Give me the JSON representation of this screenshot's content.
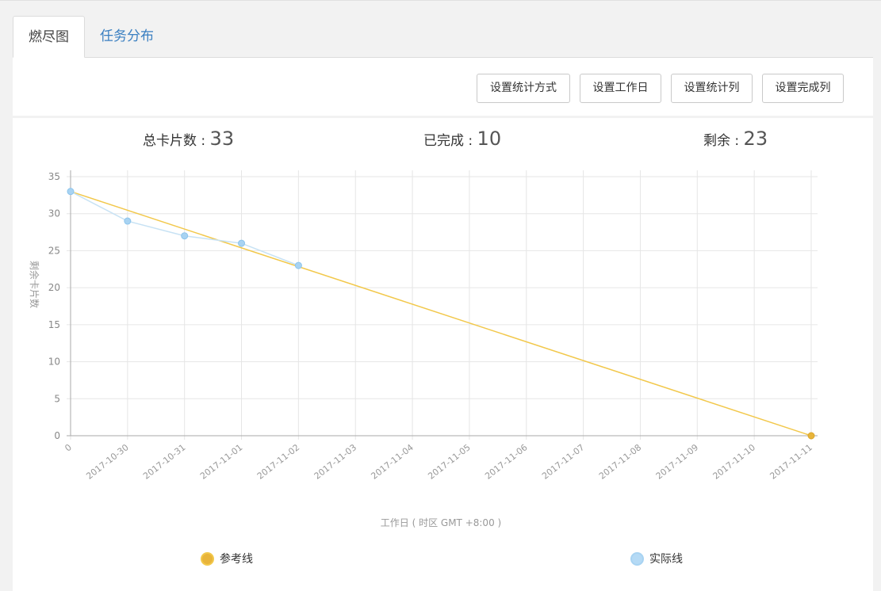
{
  "tabs": [
    {
      "label": "燃尽图",
      "active": true
    },
    {
      "label": "任务分布",
      "active": false
    }
  ],
  "toolbar": {
    "buttons": [
      "设置统计方式",
      "设置工作日",
      "设置统计列",
      "设置完成列"
    ]
  },
  "stats": {
    "total_label": "总卡片数 : ",
    "total_value": "33",
    "done_label": "已完成 : ",
    "done_value": "10",
    "remaining_label": "剩余 : ",
    "remaining_value": "23"
  },
  "colors": {
    "reference": "#f2c84b",
    "reference_dot": "#e8b43a",
    "actual": "#a8d3f2",
    "actual_line": "#c7e2f4",
    "grid": "#e6e6e6",
    "axis": "#999999",
    "tick_text": "#999999"
  },
  "chart_data": {
    "type": "line",
    "x": [
      "0",
      "2017-10-30",
      "2017-10-31",
      "2017-11-01",
      "2017-11-02",
      "2017-11-03",
      "2017-11-04",
      "2017-11-05",
      "2017-11-06",
      "2017-11-07",
      "2017-11-08",
      "2017-11-09",
      "2017-11-10",
      "2017-11-11"
    ],
    "ylim": [
      0,
      35
    ],
    "yticks": [
      0,
      5,
      10,
      15,
      20,
      25,
      30,
      35
    ],
    "ylabel": "剩余卡片数",
    "xlabel": "工作日 ( 时区 GMT +8:00 )",
    "grid": true,
    "legend_placement": "bottom",
    "series": [
      {
        "name": "参考线",
        "values": [
          33,
          null,
          null,
          null,
          null,
          null,
          null,
          null,
          null,
          null,
          null,
          null,
          null,
          0
        ]
      },
      {
        "name": "实际线",
        "values": [
          33,
          29,
          27,
          26,
          23,
          null,
          null,
          null,
          null,
          null,
          null,
          null,
          null,
          null
        ]
      }
    ]
  }
}
